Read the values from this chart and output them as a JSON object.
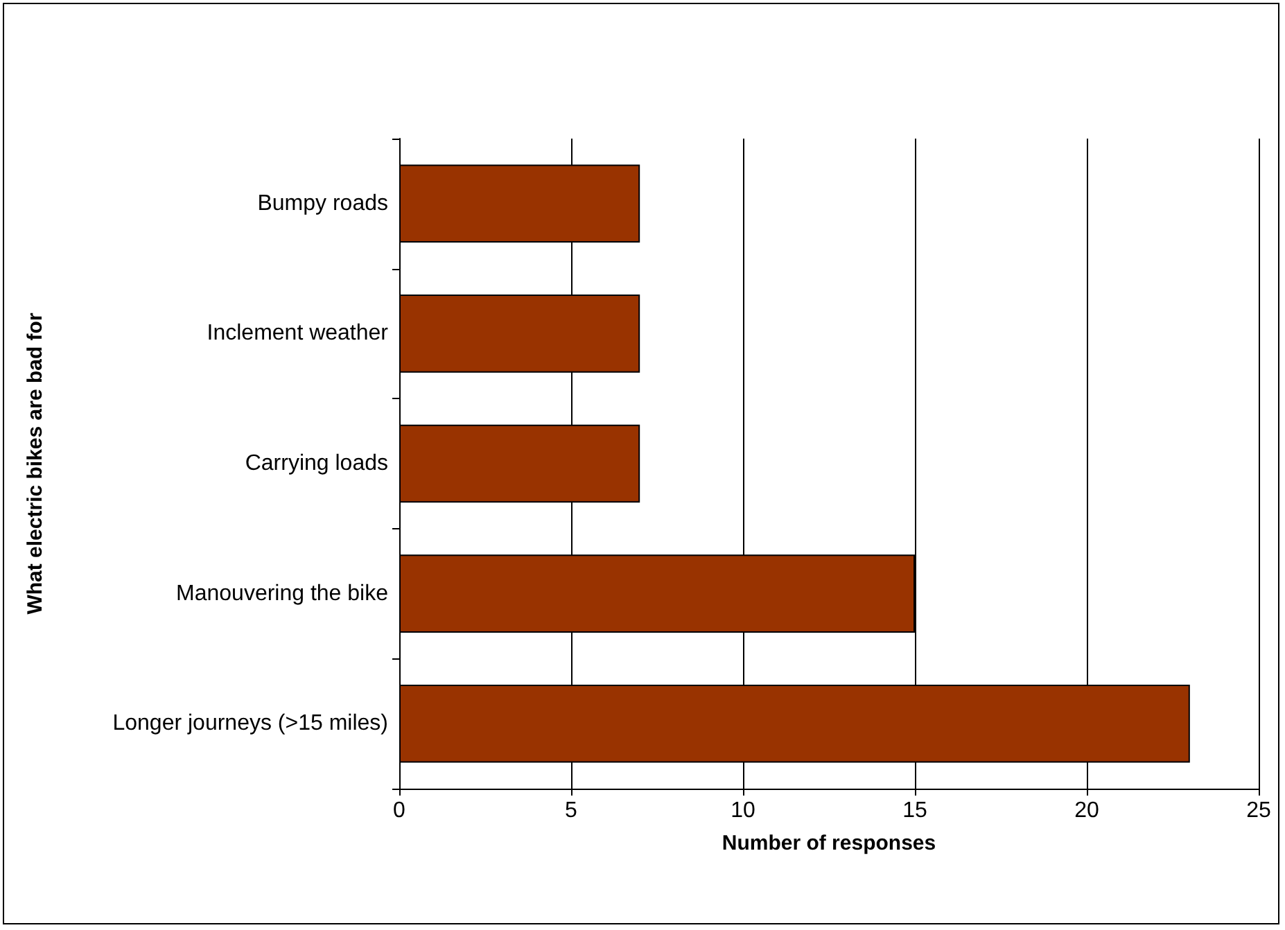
{
  "chart_data": {
    "type": "bar",
    "orientation": "horizontal",
    "xlabel": "Number of responses",
    "ylabel": "What electric bikes are bad for",
    "categories": [
      "Bumpy roads",
      "Inclement weather",
      "Carrying loads",
      "Manouvering the bike",
      "Longer journeys (>15 miles)"
    ],
    "values": [
      7,
      7,
      7,
      15,
      23
    ],
    "color": "#993300",
    "xlim": [
      0,
      25
    ],
    "xticks": [
      0,
      5,
      10,
      15,
      20,
      25
    ],
    "grid": "x"
  }
}
